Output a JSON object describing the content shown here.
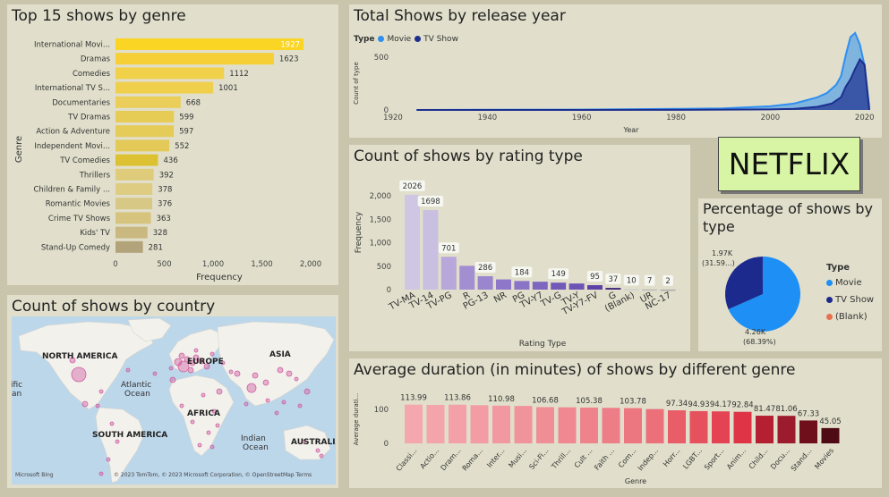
{
  "genre_panel": {
    "title": "Top 15 shows by genre",
    "chart_data": {
      "type": "bar",
      "orientation": "horizontal",
      "categories": [
        "International Movi...",
        "Dramas",
        "Comedies",
        "International TV S...",
        "Documentaries",
        "TV Dramas",
        "Action & Adventure",
        "Independent Movi...",
        "TV Comedies",
        "Thrillers",
        "Children & Family ...",
        "Romantic Movies",
        "Crime TV Shows",
        "Kids' TV",
        "Stand-Up Comedy"
      ],
      "values": [
        1927,
        1623,
        1112,
        1001,
        668,
        599,
        597,
        552,
        436,
        392,
        378,
        376,
        363,
        328,
        281
      ],
      "xlabel": "Frequency",
      "ylabel": "Genre",
      "xlim": [
        0,
        2000
      ],
      "ticks": [
        "0",
        "500",
        "1,000",
        "1,500",
        "2,000"
      ],
      "colors": [
        "#fbd524",
        "#f5cf35",
        "#f1d04a",
        "#efcf4c",
        "#eace59",
        "#e6cc55",
        "#e5cb57",
        "#e3c958",
        "#dcc232",
        "#dfcc7a",
        "#ddcc82",
        "#d8c885",
        "#d6c47e",
        "#c9b880",
        "#b3a37a"
      ]
    }
  },
  "country_panel": {
    "title": "Count of shows by country",
    "labels": {
      "north_america": "NORTH AMERICA",
      "europe": "EUROPE",
      "asia": "ASIA",
      "africa": "AFRICA",
      "south_america": "SOUTH AMERICA",
      "australia": "AUSTRALIA",
      "atlantic": "Atlantic",
      "ocean1": "Ocean",
      "indian": "Indian",
      "ocean2": "Ocean",
      "pacific": "ific",
      "pacific2": "an"
    },
    "brand": "Microsoft Bing",
    "attribution": "© 2023 TomTom, © 2023 Microsoft Corporation, © OpenStreetMap  Terms",
    "colors": {
      "bubble": "#d05fa2",
      "water": "#bcd6ea",
      "land": "#f2f1ec"
    }
  },
  "year_panel": {
    "title": "Total Shows by release year",
    "legend": {
      "title": "Type",
      "movie": "Movie",
      "tv": "TV Show"
    },
    "chart_data": {
      "type": "area",
      "xlabel": "Year",
      "ylabel": "Count of type",
      "xlim": [
        1920,
        2021
      ],
      "ylim": [
        0,
        800
      ],
      "x_ticks": [
        "1920",
        "1940",
        "1960",
        "1980",
        "2000",
        "2020"
      ],
      "y_ticks": [
        "0",
        "500"
      ],
      "series": [
        {
          "name": "Movie",
          "color": "#2f8ff0",
          "x": [
            1925,
            1940,
            1960,
            1980,
            1990,
            2000,
            2005,
            2010,
            2012,
            2014,
            2015,
            2016,
            2017,
            2018,
            2019,
            2020,
            2021
          ],
          "values": [
            0,
            2,
            3,
            10,
            15,
            35,
            60,
            120,
            160,
            240,
            320,
            520,
            690,
            730,
            620,
            420,
            20
          ]
        },
        {
          "name": "TV Show",
          "color": "#1d2f8f",
          "x": [
            1925,
            1980,
            2000,
            2005,
            2010,
            2013,
            2015,
            2016,
            2017,
            2018,
            2019,
            2020,
            2021
          ],
          "values": [
            0,
            1,
            5,
            10,
            30,
            60,
            120,
            220,
            290,
            390,
            480,
            430,
            0
          ]
        }
      ]
    }
  },
  "netflix_logo": "NETFLIX",
  "rating_panel": {
    "title": "Count of shows by rating type",
    "chart_data": {
      "type": "bar",
      "categories": [
        "TV-MA",
        "TV-14",
        "TV-PG",
        "R",
        "PG-13",
        "NR",
        "PG",
        "TV-Y7",
        "TV-G",
        "TV-Y",
        "TV-Y7-FV",
        "G",
        "(Blank)",
        "UR",
        "NC-17"
      ],
      "values": [
        2026,
        1698,
        701,
        509,
        286,
        218,
        184,
        169,
        149,
        131,
        95,
        37,
        10,
        7,
        2
      ],
      "data_labels": [
        "2026",
        "1698",
        "701",
        "",
        "286",
        "",
        "184",
        "",
        "149",
        "",
        "95",
        "37",
        "10",
        "7",
        "2"
      ],
      "xlabel": "Rating Type",
      "ylabel": "Frequency",
      "ylim": [
        0,
        2100
      ],
      "y_ticks": [
        "0",
        "500",
        "1,000",
        "1,500",
        "2,000"
      ],
      "colors": [
        "#cfc6e3",
        "#c9bfe0",
        "#b7a7da",
        "#a28fd1",
        "#9a86ce",
        "#8e77c9",
        "#8a74c7",
        "#7e66c0",
        "#7159b8",
        "#6d55b5",
        "#5d42a8",
        "#3e2a7e",
        "#d0d0d0",
        "#bbbbbb",
        "#a9a9a9"
      ]
    }
  },
  "pie_panel": {
    "title_line1": "Percentage of shows by",
    "title_line2": "type",
    "chart_data": {
      "type": "pie",
      "slices": [
        {
          "name": "Movie",
          "value": 4260,
          "percent": 68.39,
          "label1": "4.26K",
          "label2": "(68.39%)",
          "color": "#1e8ff5"
        },
        {
          "name": "TV Show",
          "value": 1970,
          "percent": 31.59,
          "label1": "1.97K",
          "label2": "(31.59...)",
          "color": "#1c2a8e"
        },
        {
          "name": "(Blank)",
          "value": 1,
          "percent": 0.02,
          "label1": "",
          "label2": "",
          "color": "#e8704e"
        }
      ]
    },
    "legend_title": "Type",
    "legend": [
      "Movie",
      "TV Show",
      "(Blank)"
    ]
  },
  "duration_panel": {
    "title": "Average duration (in minutes) of shows by different genre",
    "chart_data": {
      "type": "bar",
      "categories": [
        "Classi...",
        "Actio...",
        "Dram...",
        "Roma...",
        "Inter...",
        "Musi...",
        "Sci-Fi...",
        "Thrill...",
        "Cult ...",
        "Faith ...",
        "Com...",
        "Indep...",
        "Horr...",
        "LGBT...",
        "Sport...",
        "Anim...",
        "Child...",
        "Docu...",
        "Stand...",
        "Movies"
      ],
      "values": [
        113.99,
        113.2,
        113.86,
        112.5,
        110.98,
        110.2,
        106.68,
        106.1,
        105.38,
        104.5,
        103.78,
        101.0,
        97.34,
        94.93,
        94.17,
        92.84,
        81.47,
        81.06,
        67.33,
        45.05
      ],
      "data_labels": [
        "113.99",
        "",
        "113.86",
        "",
        "110.98",
        "",
        "106.68",
        "",
        "105.38",
        "",
        "103.78",
        "",
        "97.34",
        "94.93",
        "94.17",
        "92.84",
        "81.47",
        "81.06",
        "67.33",
        "45.05"
      ],
      "xlabel": "Genre",
      "ylabel": "Average durati...",
      "ylim": [
        0,
        125
      ],
      "y_ticks": [
        "0",
        "100"
      ],
      "colors": [
        "#f4a7ae",
        "#f4a4ab",
        "#f3a0a8",
        "#f39ca4",
        "#f298a0",
        "#f1939b",
        "#f08e96",
        "#ef8891",
        "#ee838c",
        "#ed7d87",
        "#ec7781",
        "#eb707a",
        "#e95d69",
        "#e6515e",
        "#e34352",
        "#df3446",
        "#b42032",
        "#9c1b2c",
        "#6f0f1c",
        "#4e0a15"
      ]
    }
  }
}
